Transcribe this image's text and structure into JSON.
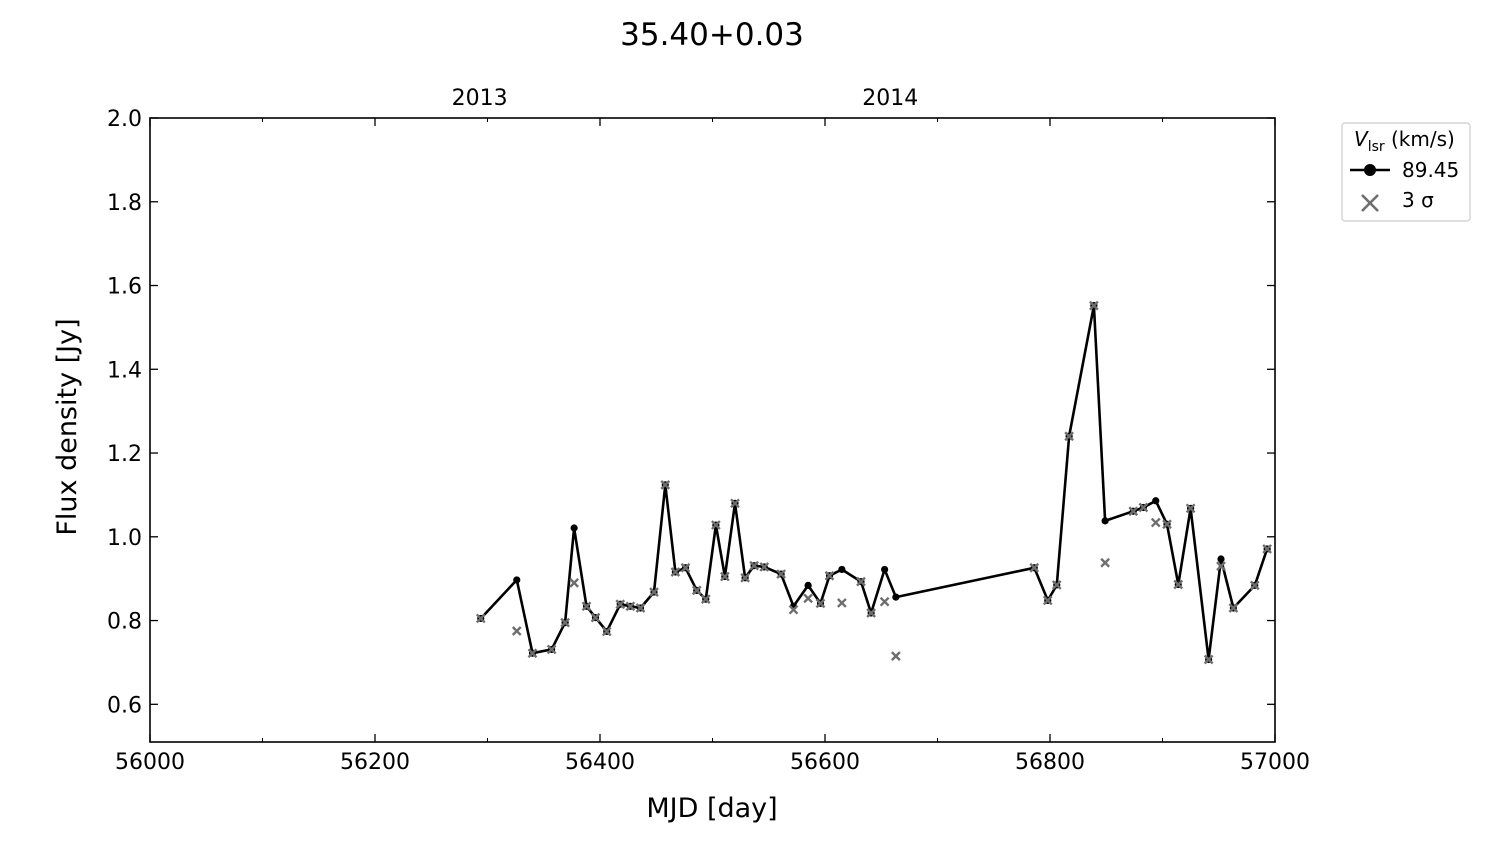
{
  "chart_data": {
    "type": "line",
    "title": "35.40+0.03",
    "xlabel": "MJD [day]",
    "ylabel": "Flux density [Jy]",
    "xlim": [
      56000,
      57000
    ],
    "ylim": [
      0.51,
      2.0
    ],
    "x_ticks": [
      56000,
      56200,
      56400,
      56600,
      56800,
      57000
    ],
    "x_minor_step": 100,
    "y_ticks": [
      0.6,
      0.8,
      1.0,
      1.2,
      1.4,
      1.6,
      1.8,
      2.0
    ],
    "top_axis_ticks": [
      {
        "x": 56293,
        "label": "2013"
      },
      {
        "x": 56658,
        "label": "2014"
      }
    ],
    "grid": false,
    "legend": {
      "placement": "outside-top-right",
      "title_var": "V",
      "title_sub": "lsr",
      "title_unit": " (km/s)",
      "entries": [
        "89.45",
        "3 σ"
      ]
    },
    "colors": {
      "series": "#000000",
      "sigma": "#6e6e6e",
      "legend_border": "#cccccc"
    },
    "series": [
      {
        "name": "89.45",
        "x": [
          56294,
          56326,
          56340,
          56357,
          56369,
          56377,
          56388,
          56396,
          56406,
          56418,
          56427,
          56436,
          56448,
          56458,
          56467,
          56476,
          56486,
          56494,
          56503,
          56511,
          56520,
          56529,
          56537,
          56546,
          56561,
          56572,
          56585,
          56596,
          56604,
          56615,
          56632,
          56641,
          56653,
          56663,
          56786,
          56798,
          56806,
          56817,
          56839,
          56849,
          56874,
          56883,
          56894,
          56904,
          56914,
          56925,
          56941,
          56952,
          56963,
          56982,
          56993
        ],
        "y": [
          0.805,
          0.897,
          0.722,
          0.731,
          0.795,
          1.021,
          0.834,
          0.807,
          0.774,
          0.839,
          0.834,
          0.83,
          0.868,
          1.124,
          0.916,
          0.926,
          0.872,
          0.851,
          1.028,
          0.905,
          1.08,
          0.902,
          0.931,
          0.928,
          0.911,
          0.834,
          0.884,
          0.841,
          0.907,
          0.922,
          0.893,
          0.818,
          0.922,
          0.856,
          0.926,
          0.848,
          0.885,
          1.24,
          1.552,
          1.038,
          1.061,
          1.07,
          1.086,
          1.03,
          0.886,
          1.068,
          0.707,
          0.947,
          0.83,
          0.884,
          0.971
        ]
      },
      {
        "name": "3 σ",
        "x": [
          56294,
          56326,
          56340,
          56357,
          56369,
          56377,
          56388,
          56396,
          56406,
          56418,
          56427,
          56436,
          56448,
          56458,
          56467,
          56476,
          56486,
          56494,
          56503,
          56511,
          56520,
          56529,
          56537,
          56546,
          56561,
          56572,
          56585,
          56596,
          56604,
          56615,
          56632,
          56641,
          56653,
          56663,
          56786,
          56798,
          56806,
          56817,
          56839,
          56849,
          56874,
          56883,
          56894,
          56904,
          56914,
          56925,
          56941,
          56952,
          56963,
          56982,
          56993
        ],
        "y": [
          0.805,
          0.775,
          0.722,
          0.731,
          0.795,
          0.89,
          0.834,
          0.807,
          0.774,
          0.839,
          0.834,
          0.83,
          0.868,
          1.124,
          0.916,
          0.926,
          0.872,
          0.851,
          1.028,
          0.905,
          1.08,
          0.902,
          0.931,
          0.928,
          0.911,
          0.826,
          0.853,
          0.841,
          0.907,
          0.842,
          0.893,
          0.818,
          0.845,
          0.715,
          0.926,
          0.848,
          0.885,
          1.24,
          1.552,
          0.938,
          1.061,
          1.07,
          1.034,
          1.03,
          0.886,
          1.068,
          0.707,
          0.93,
          0.83,
          0.884,
          0.971
        ]
      }
    ]
  }
}
